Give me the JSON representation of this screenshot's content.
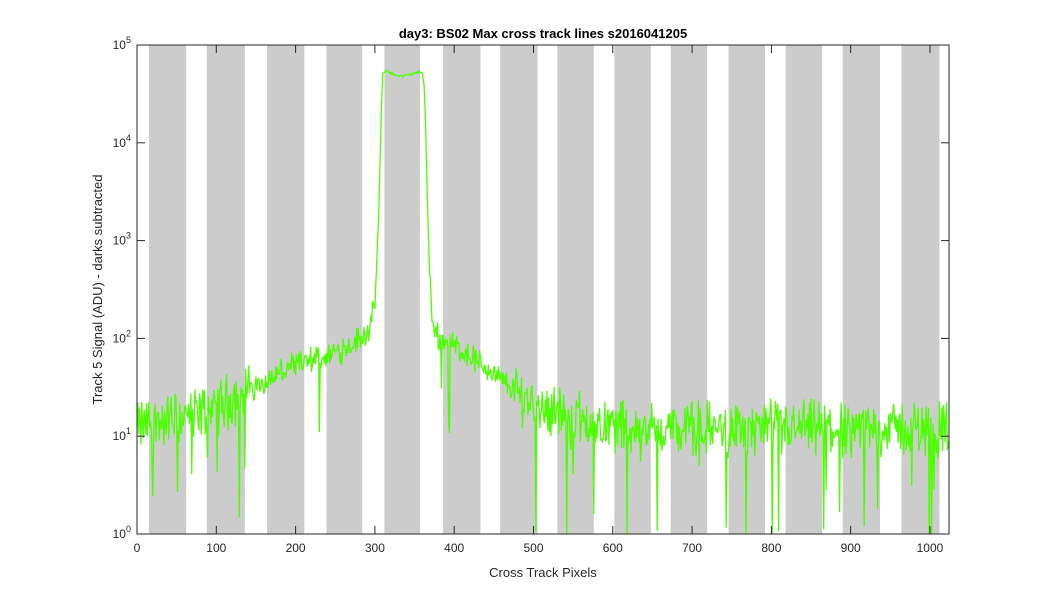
{
  "chart_data": {
    "type": "line",
    "title": "day3: BS02  Max cross track lines  s2016041205",
    "xlabel": "Cross Track Pixels",
    "ylabel": "Track 5 Signal (ADU) - darks subtracted",
    "xlim": [
      0,
      1024
    ],
    "ylim": [
      1,
      100000
    ],
    "yscale": "log",
    "xticks": [
      0,
      100,
      200,
      300,
      400,
      500,
      600,
      700,
      800,
      900,
      1000
    ],
    "yticks": [
      {
        "value": 1,
        "base": "10",
        "exp": "0"
      },
      {
        "value": 10,
        "base": "10",
        "exp": "1"
      },
      {
        "value": 100,
        "base": "10",
        "exp": "2"
      },
      {
        "value": 1000,
        "base": "10",
        "exp": "3"
      },
      {
        "value": 10000,
        "base": "10",
        "exp": "4"
      },
      {
        "value": 100000,
        "base": "10",
        "exp": "5"
      }
    ],
    "grid": false,
    "shaded_bands": [
      [
        15,
        62
      ],
      [
        88,
        136
      ],
      [
        164,
        211
      ],
      [
        239,
        284
      ],
      [
        312,
        357
      ],
      [
        386,
        433
      ],
      [
        458,
        505
      ],
      [
        530,
        576
      ],
      [
        602,
        648
      ],
      [
        673,
        719
      ],
      [
        746,
        792
      ],
      [
        818,
        864
      ],
      [
        890,
        937
      ],
      [
        964,
        1012
      ]
    ],
    "band_color": "#cccccc",
    "series": [
      {
        "color": "#4cff00",
        "x": [
          0,
          15,
          30,
          45,
          60,
          75,
          90,
          105,
          120,
          135,
          150,
          165,
          180,
          195,
          210,
          225,
          240,
          255,
          270,
          280,
          288,
          295,
          300,
          305,
          308,
          310,
          313,
          318,
          325,
          335,
          345,
          355,
          360,
          362,
          364,
          366,
          368,
          370,
          372,
          378,
          385,
          395,
          410,
          425,
          440,
          460,
          480,
          500,
          530,
          560,
          600,
          640,
          680,
          720,
          760,
          800,
          840,
          880,
          920,
          960,
          1000,
          1024
        ],
        "y": [
          12,
          14,
          14,
          15,
          16,
          17,
          19,
          21,
          24,
          28,
          33,
          38,
          44,
          50,
          55,
          60,
          67,
          76,
          88,
          98,
          112,
          135,
          220,
          2000,
          20000,
          50000,
          55000,
          53000,
          49000,
          48000,
          50000,
          53000,
          51000,
          40000,
          15000,
          3000,
          800,
          300,
          150,
          110,
          100,
          90,
          75,
          62,
          50,
          37,
          28,
          22,
          18,
          15,
          13,
          12,
          12,
          12,
          12,
          12,
          12,
          12,
          12,
          12,
          12,
          12
        ],
        "noise": "high-frequency noise; deep downward spikes to about 1 where signal is low"
      }
    ]
  }
}
